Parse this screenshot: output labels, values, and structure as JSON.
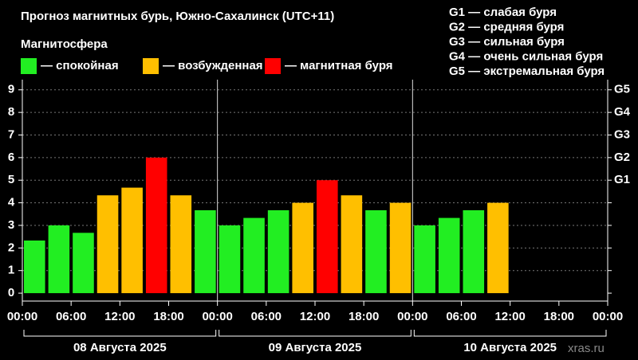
{
  "chart_data": {
    "type": "bar",
    "title": "Прогноз магнитных бурь, Южно-Сахалинск (UTC+11)",
    "subtitle": "Магнитосфера",
    "legend": [
      {
        "name": "— спокойная",
        "color": "#22ee22"
      },
      {
        "name": "— возбужденная",
        "color": "#ffbf00"
      },
      {
        "name": "— магнитная буря",
        "color": "#ff0000"
      }
    ],
    "storm_scale": [
      "G1 — слабая буря",
      "G2 — средняя буря",
      "G3 — сильная буря",
      "G4 — очень сильная буря",
      "G5 — экстремальная буря"
    ],
    "x": [
      1.5,
      4.5,
      7.5,
      10.5,
      13.5,
      16.5,
      19.5,
      22.5,
      25.5,
      28.5,
      31.5,
      34.5,
      37.5,
      40.5,
      43.5,
      46.5,
      49.5,
      52.5,
      55.5,
      58.5
    ],
    "values": [
      2.33,
      3.0,
      2.67,
      4.33,
      4.67,
      6.0,
      4.33,
      3.67,
      3.0,
      3.33,
      3.67,
      4.0,
      5.0,
      4.33,
      3.67,
      4.0,
      3.0,
      3.33,
      3.67,
      4.0
    ],
    "colors": [
      "#22ee22",
      "#22ee22",
      "#22ee22",
      "#ffbf00",
      "#ffbf00",
      "#ff0000",
      "#ffbf00",
      "#22ee22",
      "#22ee22",
      "#22ee22",
      "#22ee22",
      "#ffbf00",
      "#ff0000",
      "#ffbf00",
      "#22ee22",
      "#ffbf00",
      "#22ee22",
      "#22ee22",
      "#22ee22",
      "#ffbf00"
    ],
    "bar_width": 3,
    "xlim": [
      0,
      72
    ],
    "xticks": [
      {
        "value": 0,
        "label": "00:00"
      },
      {
        "value": 6,
        "label": "06:00"
      },
      {
        "value": 12,
        "label": "12:00"
      },
      {
        "value": 18,
        "label": "18:00"
      },
      {
        "value": 24,
        "label": "00:00"
      },
      {
        "value": 30,
        "label": "06:00"
      },
      {
        "value": 36,
        "label": "12:00"
      },
      {
        "value": 42,
        "label": "18:00"
      },
      {
        "value": 48,
        "label": "00:00"
      },
      {
        "value": 54,
        "label": "06:00"
      },
      {
        "value": 60,
        "label": "12:00"
      },
      {
        "value": 66,
        "label": "18:00"
      },
      {
        "value": 72,
        "label": "00:00"
      }
    ],
    "days": [
      {
        "label": "08 Августа 2025",
        "start": 0,
        "end": 24
      },
      {
        "label": "09 Августа 2025",
        "start": 24,
        "end": 48
      },
      {
        "label": "10 Августа 2025",
        "start": 48,
        "end": 72
      }
    ],
    "ylim": [
      -0.35,
      9.45
    ],
    "yticks": [
      0,
      1,
      2,
      3,
      4,
      5,
      6,
      7,
      8,
      9
    ],
    "y2lim": [
      -0.35,
      9.45
    ],
    "y2ticks": [
      {
        "value": 5,
        "label": "G1"
      },
      {
        "value": 6,
        "label": "G2"
      },
      {
        "value": 7,
        "label": "G3"
      },
      {
        "value": 8,
        "label": "G4"
      },
      {
        "value": 9,
        "label": "G5"
      }
    ],
    "grid": true,
    "watermark": "xras.ru"
  }
}
